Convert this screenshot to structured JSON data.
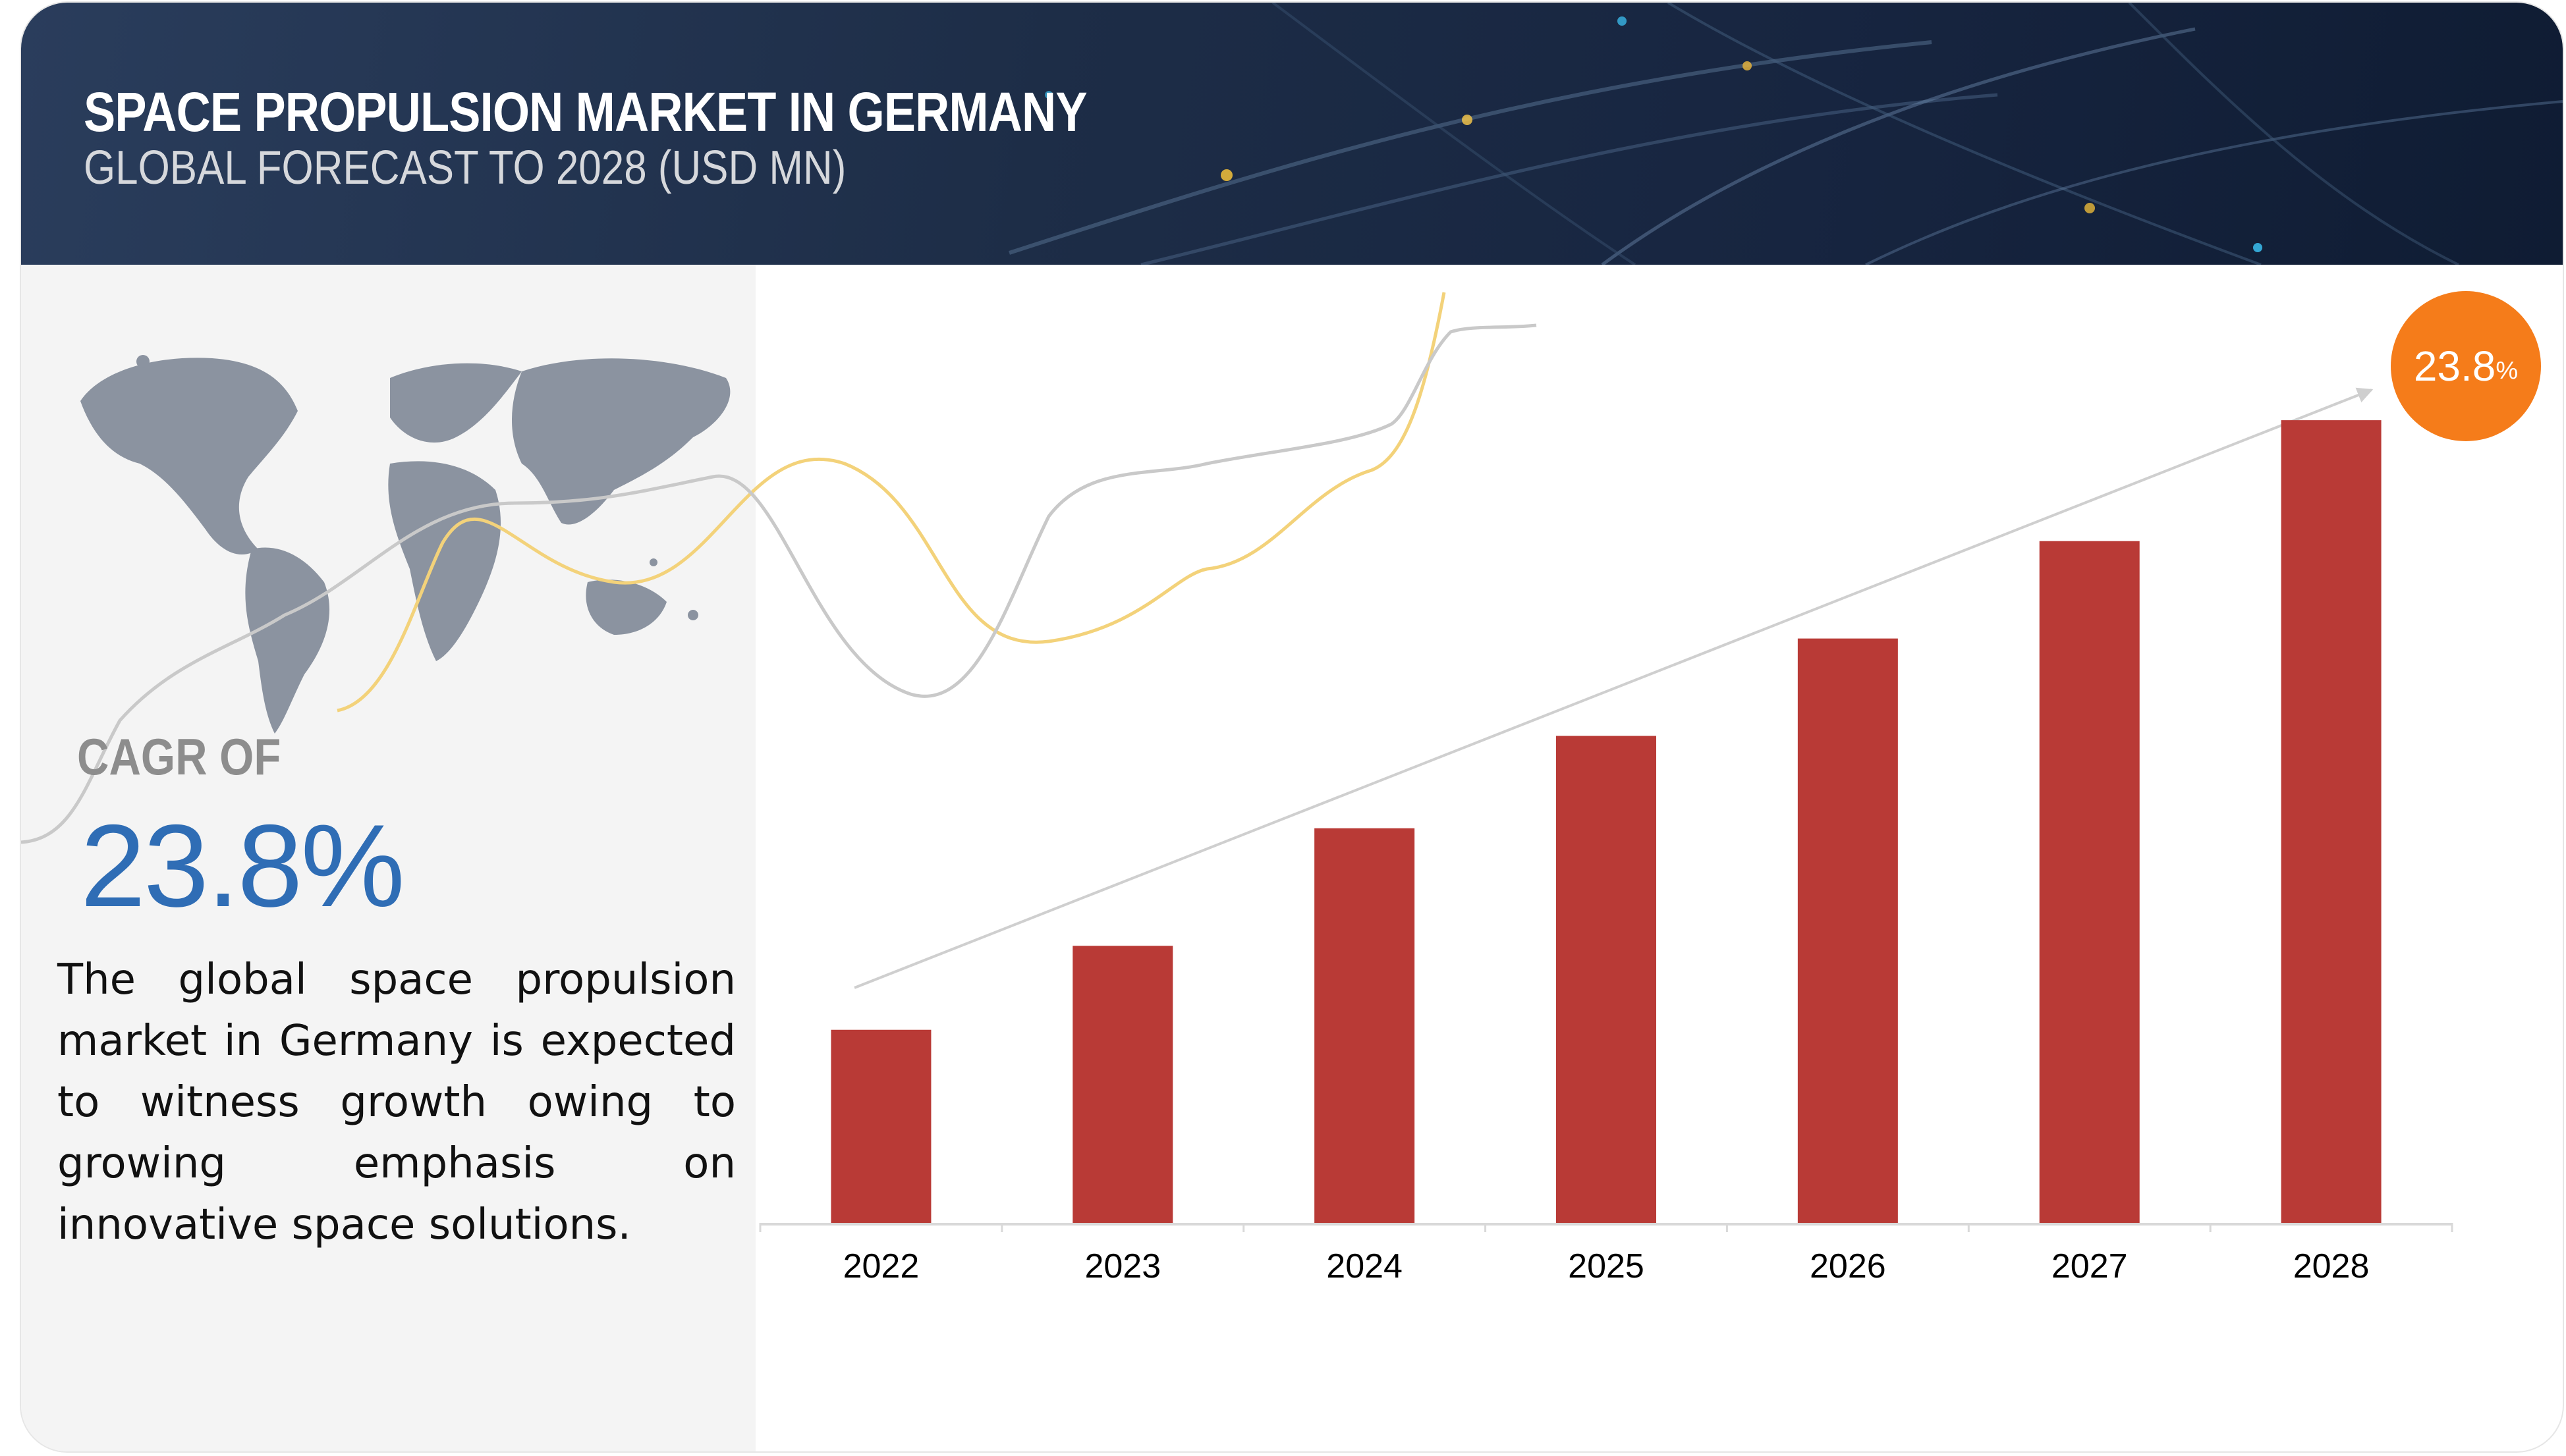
{
  "header": {
    "title": "SPACE PROPULSION MARKET IN GERMANY",
    "subtitle": "GLOBAL FORECAST TO 2028 (USD MN)"
  },
  "summary": {
    "cagr_label": "CAGR OF",
    "cagr_value": "23.8%",
    "description": "The global space propulsion market in Germany is expected to witness growth owing to growing emphasis on innovative space solutions.",
    "map_icon": "world-map-icon"
  },
  "badge": {
    "value": "23.8",
    "unit": "%"
  },
  "colors": {
    "bar": "#b93a36",
    "cagr_text": "#2f6db5",
    "badge": "#f57c1a",
    "banner": "#1d2d47"
  },
  "chart_data": {
    "type": "bar",
    "categories": [
      "2022",
      "2023",
      "2024",
      "2025",
      "2026",
      "2027",
      "2028"
    ],
    "values": [
      115,
      165,
      235,
      290,
      348,
      406,
      478
    ],
    "ylim": [
      0,
      500
    ],
    "y_axis_visible": false,
    "grid": false,
    "legend": "none",
    "trend_arrow": {
      "label": "23.8%"
    }
  }
}
